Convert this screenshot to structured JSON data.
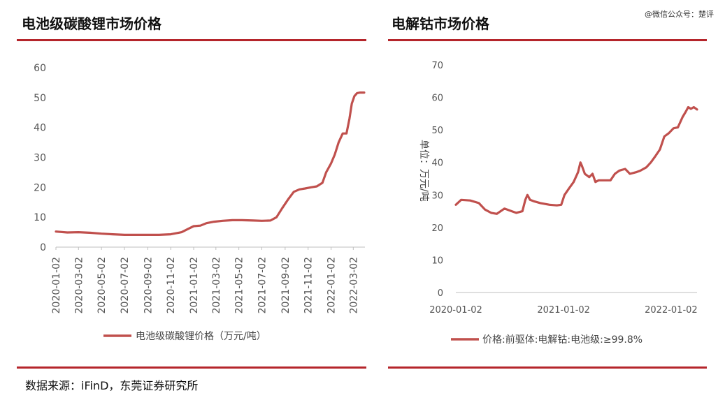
{
  "watermark": "@微信公众号：楚评",
  "source": "数据来源：iFinD，东莞证券研究所",
  "colors": {
    "series": "#c0504d",
    "rule": "#b5252b",
    "axis": "#bfbfbf"
  },
  "chart_data": [
    {
      "type": "line",
      "title": "电池级碳酸锂市场价格",
      "ylim": [
        0,
        60
      ],
      "yticks": [
        "0",
        "10",
        "20",
        "30",
        "40",
        "50",
        "60"
      ],
      "xticks": [
        "2020-01-02",
        "2020-03-02",
        "2020-05-02",
        "2020-07-02",
        "2020-09-02",
        "2020-11-02",
        "2021-01-02",
        "2021-03-02",
        "2021-05-02",
        "2021-07-02",
        "2021-09-02",
        "2021-11-02",
        "2022-01-02",
        "2022-03-02"
      ],
      "xrange": [
        "2020-01-02",
        "2022-04-02"
      ],
      "grid": false,
      "legend": "bottom",
      "series": [
        {
          "name": "电池级碳酸锂价格（万元/吨）",
          "points": [
            [
              "2020-01-02",
              5.2
            ],
            [
              "2020-02-01",
              4.9
            ],
            [
              "2020-03-02",
              5.0
            ],
            [
              "2020-04-01",
              4.8
            ],
            [
              "2020-05-02",
              4.5
            ],
            [
              "2020-06-01",
              4.3
            ],
            [
              "2020-07-02",
              4.1
            ],
            [
              "2020-08-01",
              4.1
            ],
            [
              "2020-09-02",
              4.1
            ],
            [
              "2020-10-02",
              4.1
            ],
            [
              "2020-11-02",
              4.3
            ],
            [
              "2020-12-01",
              5.0
            ],
            [
              "2020-12-20",
              6.2
            ],
            [
              "2021-01-02",
              7.0
            ],
            [
              "2021-01-20",
              7.2
            ],
            [
              "2021-02-05",
              8.0
            ],
            [
              "2021-02-25",
              8.5
            ],
            [
              "2021-03-20",
              8.8
            ],
            [
              "2021-04-15",
              9.0
            ],
            [
              "2021-05-10",
              9.0
            ],
            [
              "2021-06-10",
              8.9
            ],
            [
              "2021-07-02",
              8.8
            ],
            [
              "2021-07-25",
              8.9
            ],
            [
              "2021-08-10",
              10.0
            ],
            [
              "2021-08-25",
              13.0
            ],
            [
              "2021-09-10",
              16.0
            ],
            [
              "2021-09-25",
              18.5
            ],
            [
              "2021-10-10",
              19.3
            ],
            [
              "2021-10-25",
              19.6
            ],
            [
              "2021-11-10",
              20.0
            ],
            [
              "2021-11-25",
              20.3
            ],
            [
              "2021-12-10",
              21.5
            ],
            [
              "2021-12-20",
              25.0
            ],
            [
              "2022-01-02",
              28.0
            ],
            [
              "2022-01-12",
              31.0
            ],
            [
              "2022-01-22",
              35.0
            ],
            [
              "2022-02-02",
              38.0
            ],
            [
              "2022-02-12",
              38.0
            ],
            [
              "2022-02-20",
              43.0
            ],
            [
              "2022-02-26",
              48.0
            ],
            [
              "2022-03-05",
              50.5
            ],
            [
              "2022-03-12",
              51.5
            ],
            [
              "2022-03-20",
              51.7
            ],
            [
              "2022-03-31",
              51.7
            ]
          ]
        }
      ]
    },
    {
      "type": "line",
      "title": "电解钴市场价格",
      "ylabel": "单位：万元/吨",
      "ylim": [
        0,
        70
      ],
      "yticks": [
        "0",
        "10",
        "20",
        "30",
        "40",
        "50",
        "60",
        "70"
      ],
      "xticks": [
        "2020-01-02",
        "2021-01-02",
        "2022-01-02"
      ],
      "xrange": [
        "2020-01-02",
        "2022-03-31"
      ],
      "grid": false,
      "legend": "bottom",
      "series": [
        {
          "name": "价格:前驱体:电解钴:电池级:≥99.8%",
          "points": [
            [
              "2020-01-02",
              27.0
            ],
            [
              "2020-01-20",
              28.5
            ],
            [
              "2020-02-20",
              28.3
            ],
            [
              "2020-03-20",
              27.5
            ],
            [
              "2020-04-10",
              25.5
            ],
            [
              "2020-05-01",
              24.5
            ],
            [
              "2020-05-20",
              24.2
            ],
            [
              "2020-06-15",
              25.8
            ],
            [
              "2020-07-10",
              25.0
            ],
            [
              "2020-07-25",
              24.5
            ],
            [
              "2020-08-15",
              25.0
            ],
            [
              "2020-08-25",
              28.5
            ],
            [
              "2020-09-01",
              30.0
            ],
            [
              "2020-09-10",
              28.5
            ],
            [
              "2020-09-25",
              28.0
            ],
            [
              "2020-10-15",
              27.5
            ],
            [
              "2020-11-15",
              27.0
            ],
            [
              "2020-12-10",
              26.8
            ],
            [
              "2020-12-25",
              27.0
            ],
            [
              "2021-01-05",
              30.0
            ],
            [
              "2021-01-20",
              32.0
            ],
            [
              "2021-02-05",
              34.0
            ],
            [
              "2021-02-20",
              37.0
            ],
            [
              "2021-02-28",
              40.0
            ],
            [
              "2021-03-05",
              39.0
            ],
            [
              "2021-03-15",
              36.5
            ],
            [
              "2021-03-30",
              35.5
            ],
            [
              "2021-04-10",
              36.5
            ],
            [
              "2021-04-20",
              34.0
            ],
            [
              "2021-05-01",
              34.5
            ],
            [
              "2021-05-20",
              34.5
            ],
            [
              "2021-06-10",
              34.5
            ],
            [
              "2021-06-25",
              36.5
            ],
            [
              "2021-07-10",
              37.5
            ],
            [
              "2021-07-30",
              38.0
            ],
            [
              "2021-08-15",
              36.5
            ],
            [
              "2021-09-05",
              37.0
            ],
            [
              "2021-09-20",
              37.5
            ],
            [
              "2021-10-10",
              38.5
            ],
            [
              "2021-10-25",
              40.0
            ],
            [
              "2021-11-10",
              42.0
            ],
            [
              "2021-11-25",
              44.0
            ],
            [
              "2021-12-10",
              48.0
            ],
            [
              "2021-12-25",
              49.0
            ],
            [
              "2022-01-10",
              50.5
            ],
            [
              "2022-01-25",
              50.8
            ],
            [
              "2022-02-10",
              54.0
            ],
            [
              "2022-02-20",
              55.5
            ],
            [
              "2022-03-01",
              57.0
            ],
            [
              "2022-03-10",
              56.5
            ],
            [
              "2022-03-20",
              57.0
            ],
            [
              "2022-03-31",
              56.3
            ]
          ]
        }
      ]
    }
  ]
}
